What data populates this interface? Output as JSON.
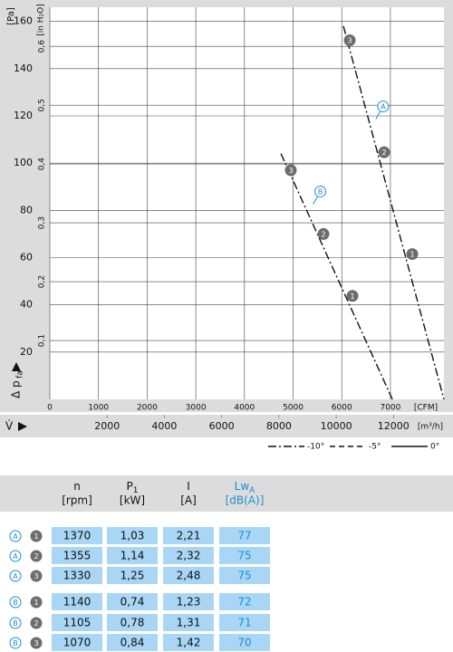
{
  "chart_data": {
    "type": "line",
    "y_label": "[Pa]",
    "y2_label": "[in H₂O]",
    "y_title": "Δ p",
    "y_title_sub": "fa",
    "x_title": "V̇",
    "x_unit": "[CFM]",
    "x2_unit": "[m³/h]",
    "xlim": [
      0,
      8100
    ],
    "xticks": [
      0,
      1000,
      2000,
      3000,
      4000,
      5000,
      6000,
      7000
    ],
    "x2lim": [
      0,
      13762
    ],
    "x2ticks": [
      2000,
      4000,
      6000,
      8000,
      10000,
      12000
    ],
    "ylim": [
      0,
      166
    ],
    "yticks": [
      20,
      40,
      60,
      80,
      100,
      120,
      140,
      160
    ],
    "y2lim": [
      0,
      0.6665
    ],
    "y2ticks": [
      {
        "value": 0.1,
        "label": "0,1"
      },
      {
        "value": 0.2,
        "label": "0,2"
      },
      {
        "value": 0.3,
        "label": "0,3"
      },
      {
        "value": 0.4,
        "label": "0,4"
      },
      {
        "value": 0.5,
        "label": "0,5"
      },
      {
        "value": 0.6,
        "label": "0,6"
      }
    ],
    "grid": true,
    "series": [
      {
        "name": "A",
        "color": "#111111",
        "style": "dashdot",
        "x": [
          6034,
          8100
        ],
        "values": [
          158,
          0
        ],
        "callout": [
          6850,
          124
        ],
        "points": {
          "labels": [
            "1",
            "2",
            "3"
          ],
          "x": [
            7449,
            6872,
            6164
          ],
          "values": [
            61.5,
            104.6,
            152
          ]
        }
      },
      {
        "name": "B",
        "color": "#111111",
        "style": "dashdot",
        "x": [
          4750,
          7040
        ],
        "values": [
          104,
          0
        ],
        "callout": [
          5560,
          88
        ],
        "points": {
          "labels": [
            "1",
            "2",
            "3"
          ],
          "x": [
            6220,
            5624,
            4953
          ],
          "values": [
            43.8,
            70,
            97
          ]
        }
      }
    ],
    "legend": [
      {
        "label": "-10°",
        "style": "dashdot"
      },
      {
        "label": "-5°",
        "style": "dashed"
      },
      {
        "label": "0°",
        "style": "solid"
      }
    ]
  },
  "table": {
    "columns": [
      {
        "name": "n",
        "unit": "[rpm]"
      },
      {
        "name": "P",
        "sub": "1",
        "unit": "[kW]"
      },
      {
        "name": "I",
        "unit": "[A]"
      },
      {
        "name": "Lw",
        "sub": "A",
        "unit": "[dB(A)]"
      }
    ],
    "rows": [
      {
        "curve": "A",
        "point": "1",
        "cells": [
          "1370",
          "1,03",
          "2,21",
          "77"
        ]
      },
      {
        "curve": "A",
        "point": "2",
        "cells": [
          "1355",
          "1,14",
          "2,32",
          "75"
        ]
      },
      {
        "curve": "A",
        "point": "3",
        "cells": [
          "1330",
          "1,25",
          "2,48",
          "75"
        ]
      },
      {
        "curve": "B",
        "point": "1",
        "cells": [
          "1140",
          "0,74",
          "1,23",
          "72"
        ]
      },
      {
        "curve": "B",
        "point": "2",
        "cells": [
          "1105",
          "0,78",
          "1,31",
          "71"
        ]
      },
      {
        "curve": "B",
        "point": "3",
        "cells": [
          "1070",
          "0,84",
          "1,42",
          "70"
        ]
      }
    ]
  }
}
